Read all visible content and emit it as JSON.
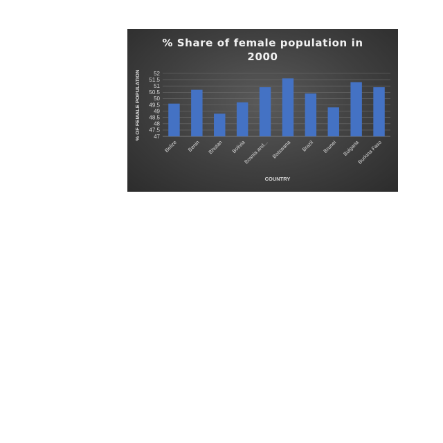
{
  "chart_data": {
    "type": "bar",
    "title_lines": [
      "% Share of female population in",
      "2000"
    ],
    "xlabel": "COUNTRY",
    "ylabel": "% OF FEMALE POPULATION",
    "ylim": [
      47,
      52
    ],
    "yticks": [
      "52",
      "51.5",
      "51",
      "50.5",
      "50",
      "49.5",
      "49",
      "48.5",
      "48",
      "47.5",
      "47"
    ],
    "categories": [
      "Belize",
      "Benin",
      "Bhutan",
      "Bolivia",
      "Bosnia and...",
      "Botswana",
      "Brazil",
      "Brunei",
      "Bulgaria",
      "Burkina Faso"
    ],
    "values": [
      49.6,
      50.7,
      48.8,
      49.7,
      50.9,
      51.6,
      50.4,
      49.3,
      51.3,
      50.9
    ],
    "grid": true,
    "legend": "none",
    "bar_color": "#4472c4",
    "background_color": "#3f3f3f"
  }
}
